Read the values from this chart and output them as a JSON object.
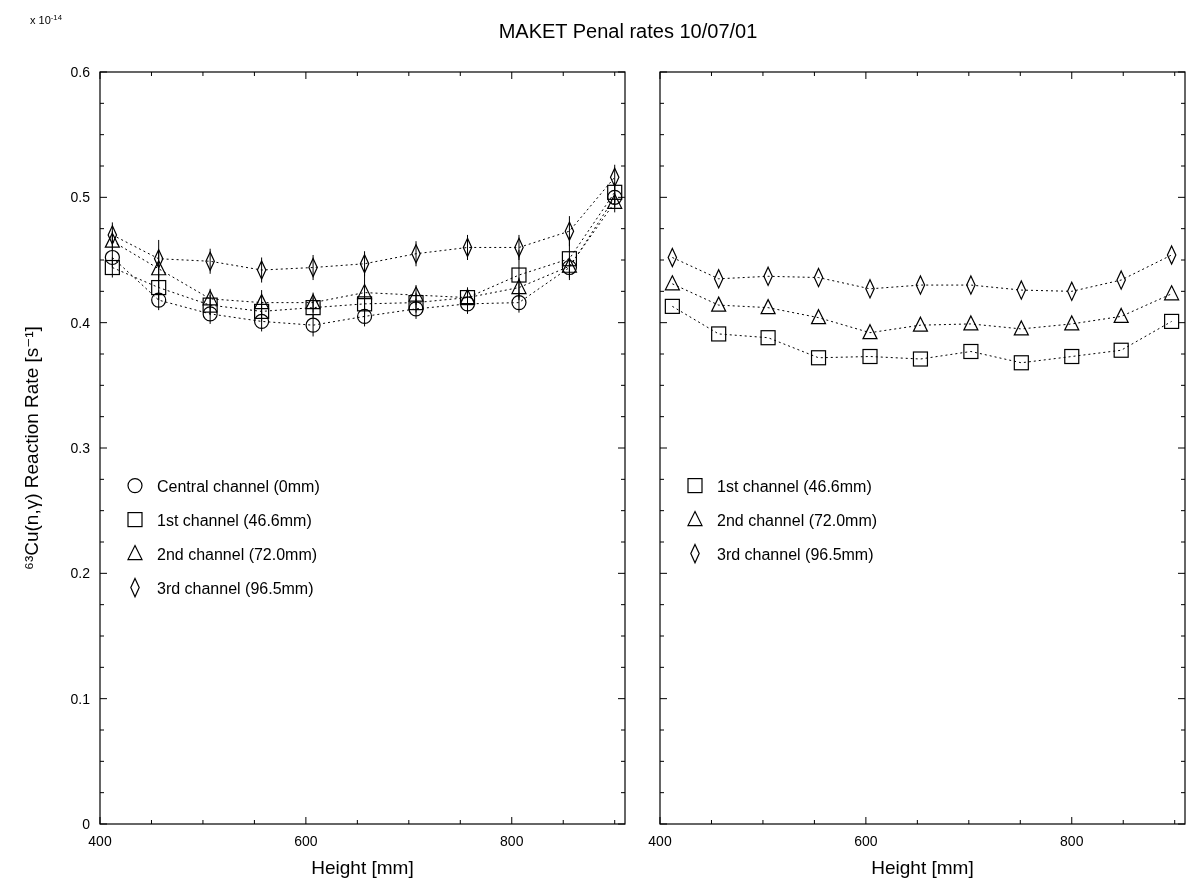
{
  "chart_data": [
    {
      "type": "line",
      "title": "MAKET Penal rates 10/07/01",
      "xlabel": "Height [mm]",
      "ylabel": "⁶³Cu(n,γ) Reaction Rate [s⁻¹]",
      "annotations": [
        "x 10$^{-14}$"
      ],
      "xlim": [
        400,
        910
      ],
      "xticks": [
        400,
        {
          "value": 450,
          "label": null
        },
        {
          "value": 500,
          "label": null
        },
        {
          "value": 550,
          "label": null
        },
        600,
        {
          "value": 650,
          "label": null
        },
        {
          "value": 700,
          "label": null
        },
        {
          "value": 750,
          "label": null
        },
        800,
        {
          "value": 850,
          "label": null
        },
        {
          "value": 900,
          "label": null
        }
      ],
      "ylim": [
        0,
        0.6
      ],
      "yticks": [
        0,
        {
          "value": 0.025,
          "label": null
        },
        {
          "value": 0.05,
          "label": null
        },
        {
          "value": 0.075,
          "label": null
        },
        0.1,
        {
          "value": 0.125,
          "label": null
        },
        {
          "value": 0.15,
          "label": null
        },
        {
          "value": 0.175,
          "label": null
        },
        0.2,
        {
          "value": 0.225,
          "label": null
        },
        {
          "value": 0.25,
          "label": null
        },
        {
          "value": 0.275,
          "label": null
        },
        0.3,
        {
          "value": 0.325,
          "label": null
        },
        {
          "value": 0.35,
          "label": null
        },
        {
          "value": 0.375,
          "label": null
        },
        0.4,
        {
          "value": 0.425,
          "label": null
        },
        {
          "value": 0.45,
          "label": null
        },
        {
          "value": 0.475,
          "label": null
        },
        0.5,
        {
          "value": 0.525,
          "label": null
        },
        {
          "value": 0.55,
          "label": null
        },
        {
          "value": 0.575,
          "label": null
        },
        0.6
      ],
      "x": [
        412,
        457,
        507,
        557,
        607,
        657,
        707,
        757,
        807,
        856,
        900
      ],
      "legend": "left",
      "line_style": "dotted",
      "grid": false,
      "series": [
        {
          "name": "Central channel (0mm)",
          "color": "#000000",
          "marker": "circle",
          "values": [
            0.452,
            0.418,
            0.407,
            0.401,
            0.398,
            0.405,
            0.411,
            0.415,
            0.416,
            0.444,
            0.5
          ],
          "errors": [
            0.008,
            0.008,
            0.008,
            0.008,
            0.009,
            0.008,
            0.008,
            0.008,
            0.008,
            0.008,
            0.008
          ]
        },
        {
          "name": "1st channel (46.6mm)",
          "color": "#000000",
          "marker": "square",
          "values": [
            0.444,
            0.428,
            0.414,
            0.409,
            0.412,
            0.415,
            0.416,
            0.42,
            0.438,
            0.451,
            0.504
          ],
          "errors": [
            0.008,
            0.01,
            0.008,
            0.008,
            0.008,
            0.008,
            0.008,
            0.008,
            0.02,
            0.017,
            0.008
          ]
        },
        {
          "name": "2nd channel (72.0mm)",
          "color": "#000000",
          "marker": "triangle",
          "values": [
            0.465,
            0.443,
            0.419,
            0.416,
            0.416,
            0.424,
            0.422,
            0.42,
            0.428,
            0.445,
            0.496
          ],
          "errors": [
            0.008,
            0.015,
            0.008,
            0.01,
            0.008,
            0.02,
            0.008,
            0.008,
            0.008,
            null,
            0.008
          ]
        },
        {
          "name": "3rd channel (96.5mm)",
          "color": "#000000",
          "marker": "diamond",
          "values": [
            0.47,
            0.451,
            0.449,
            0.442,
            0.444,
            0.447,
            0.455,
            0.46,
            0.46,
            0.473,
            0.516
          ],
          "errors": [
            0.01,
            0.015,
            0.01,
            0.01,
            0.01,
            0.01,
            0.01,
            0.01,
            0.01,
            0.012,
            0.01
          ]
        }
      ]
    },
    {
      "type": "line",
      "xlabel": "Height [mm]",
      "tick_labels": "x",
      "xlim": [
        400,
        910
      ],
      "xticks": [
        400,
        {
          "value": 450,
          "label": null
        },
        {
          "value": 500,
          "label": null
        },
        {
          "value": 550,
          "label": null
        },
        600,
        {
          "value": 650,
          "label": null
        },
        {
          "value": 700,
          "label": null
        },
        {
          "value": 750,
          "label": null
        },
        800,
        {
          "value": 850,
          "label": null
        },
        {
          "value": 900,
          "label": null
        }
      ],
      "ylim": [
        0,
        0.6
      ],
      "yticks": [
        0,
        {
          "value": 0.025,
          "label": null
        },
        {
          "value": 0.05,
          "label": null
        },
        {
          "value": 0.075,
          "label": null
        },
        0.1,
        {
          "value": 0.125,
          "label": null
        },
        {
          "value": 0.15,
          "label": null
        },
        {
          "value": 0.175,
          "label": null
        },
        0.2,
        {
          "value": 0.225,
          "label": null
        },
        {
          "value": 0.25,
          "label": null
        },
        {
          "value": 0.275,
          "label": null
        },
        0.3,
        {
          "value": 0.325,
          "label": null
        },
        {
          "value": 0.35,
          "label": null
        },
        {
          "value": 0.375,
          "label": null
        },
        0.4,
        {
          "value": 0.425,
          "label": null
        },
        {
          "value": 0.45,
          "label": null
        },
        {
          "value": 0.475,
          "label": null
        },
        0.5,
        {
          "value": 0.525,
          "label": null
        },
        {
          "value": 0.55,
          "label": null
        },
        {
          "value": 0.575,
          "label": null
        },
        0.6
      ],
      "x": [
        412,
        457,
        505,
        554,
        604,
        653,
        702,
        751,
        800,
        848,
        897
      ],
      "legend": "left",
      "line_style": "dotted",
      "grid": false,
      "series": [
        {
          "name": "1st channel (46.6mm)",
          "color": "#000000",
          "marker": "square",
          "values": [
            0.413,
            0.391,
            0.388,
            0.372,
            0.373,
            0.371,
            0.377,
            0.368,
            0.373,
            0.378,
            0.401
          ]
        },
        {
          "name": "2nd channel (72.0mm)",
          "color": "#000000",
          "marker": "triangle",
          "values": [
            0.431,
            0.414,
            0.412,
            0.404,
            0.392,
            0.398,
            0.399,
            0.395,
            0.399,
            0.405,
            0.423
          ]
        },
        {
          "name": "3rd channel (96.5mm)",
          "color": "#000000",
          "marker": "diamond",
          "values": [
            0.452,
            0.435,
            0.437,
            0.436,
            0.427,
            0.43,
            0.43,
            0.426,
            0.425,
            0.434,
            0.454
          ]
        }
      ]
    }
  ]
}
